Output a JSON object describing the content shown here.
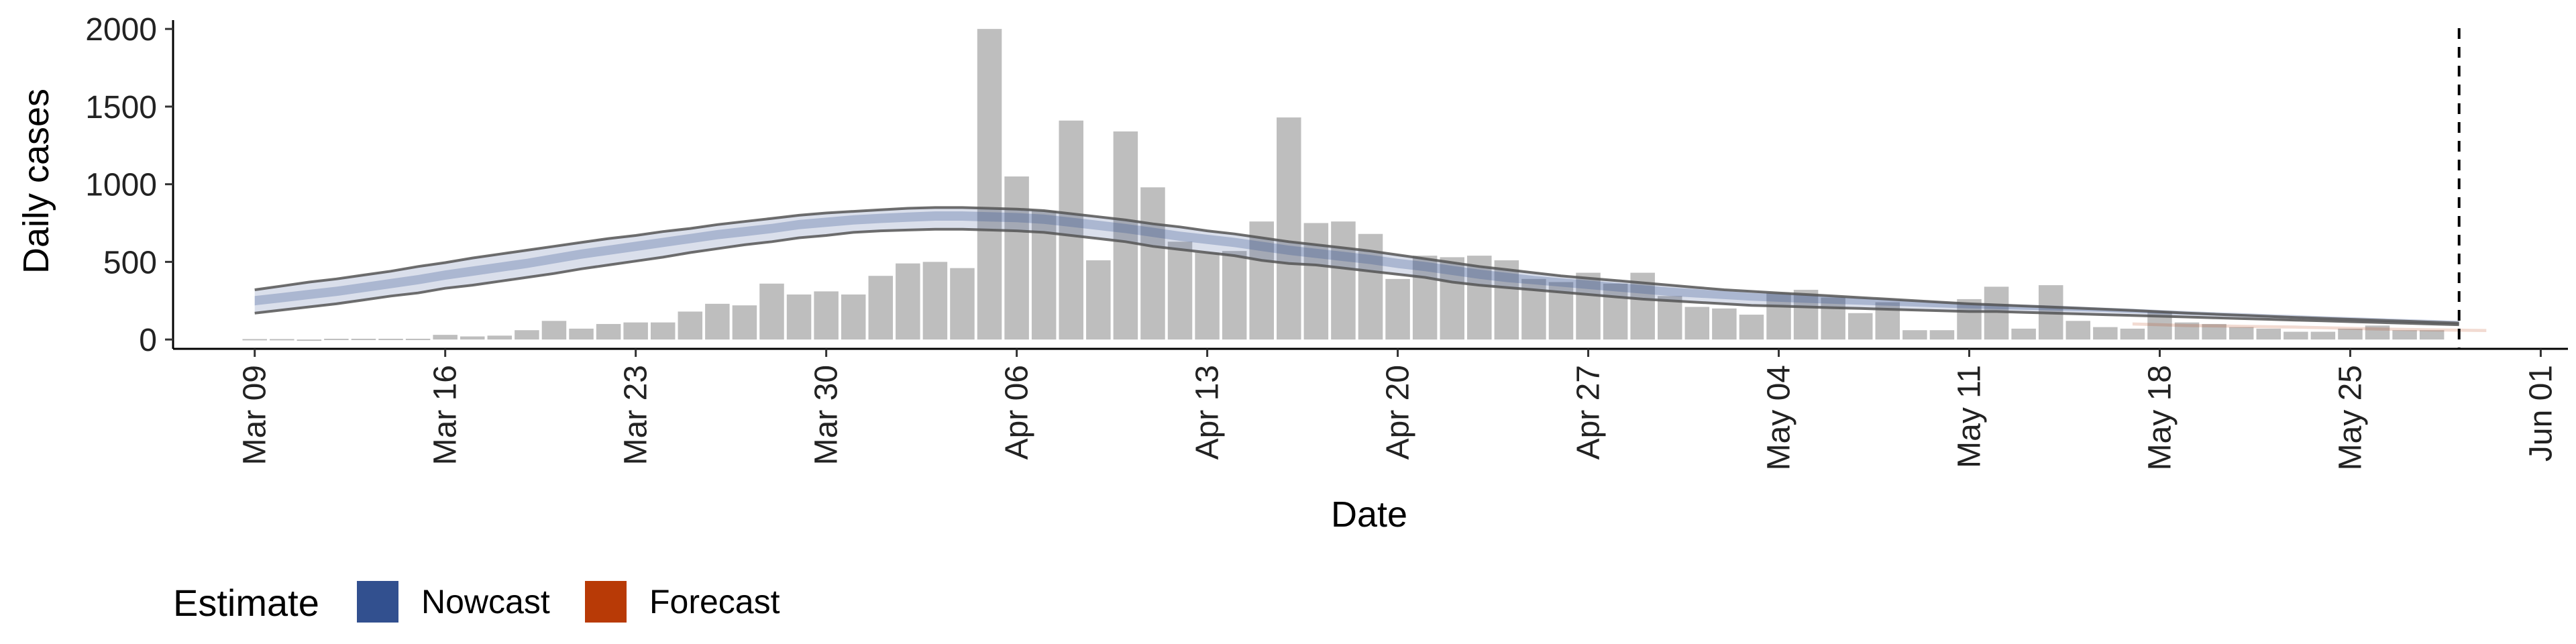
{
  "chart_data": {
    "type": "bar",
    "title": "",
    "xlabel": "Date",
    "ylabel": "Daily cases",
    "ylim": [
      -60,
      2100
    ],
    "xlim": [
      "2020-03-06",
      "2020-06-02"
    ],
    "y_ticks": [
      0,
      500,
      1000,
      1500,
      2000
    ],
    "x_ticks": [
      {
        "date": "2020-03-09",
        "label": "Mar 09"
      },
      {
        "date": "2020-03-16",
        "label": "Mar 16"
      },
      {
        "date": "2020-03-23",
        "label": "Mar 23"
      },
      {
        "date": "2020-03-30",
        "label": "Mar 30"
      },
      {
        "date": "2020-04-06",
        "label": "Apr 06"
      },
      {
        "date": "2020-04-13",
        "label": "Apr 13"
      },
      {
        "date": "2020-04-20",
        "label": "Apr 20"
      },
      {
        "date": "2020-04-27",
        "label": "Apr 27"
      },
      {
        "date": "2020-05-04",
        "label": "May 04"
      },
      {
        "date": "2020-05-11",
        "label": "May 11"
      },
      {
        "date": "2020-05-18",
        "label": "May 18"
      },
      {
        "date": "2020-05-25",
        "label": "May 25"
      },
      {
        "date": "2020-06-01",
        "label": "Jun 01"
      }
    ],
    "grid": false,
    "bars": {
      "start_date": "2020-03-09",
      "values": [
        3,
        3,
        0,
        5,
        5,
        5,
        5,
        30,
        20,
        25,
        60,
        120,
        70,
        100,
        110,
        110,
        180,
        230,
        220,
        360,
        290,
        310,
        290,
        410,
        490,
        500,
        460,
        2000,
        1050,
        830,
        1410,
        510,
        1340,
        980,
        630,
        560,
        570,
        760,
        1430,
        750,
        760,
        680,
        390,
        540,
        530,
        540,
        510,
        390,
        370,
        430,
        360,
        430,
        280,
        210,
        200,
        160,
        300,
        320,
        270,
        170,
        240,
        60,
        60,
        260,
        340,
        70,
        350,
        120,
        80,
        70,
        180,
        110,
        100,
        80,
        70,
        50,
        50,
        70,
        90,
        60,
        60
      ],
      "color": "#bebebe"
    },
    "dashed_line_date": "2020-05-29",
    "legend": {
      "title": "Estimate",
      "position": "bottom-left",
      "items": [
        {
          "label": "Nowcast",
          "color": "#32508f"
        },
        {
          "label": "Forecast",
          "color": "#b83a06"
        }
      ]
    },
    "series": [
      {
        "name": "Nowcast",
        "color": "#32508f",
        "start_date": "2020-03-09",
        "lower_90": [
          170,
          190,
          210,
          230,
          255,
          280,
          300,
          330,
          350,
          375,
          400,
          425,
          455,
          480,
          505,
          530,
          560,
          585,
          610,
          630,
          655,
          670,
          690,
          700,
          705,
          710,
          710,
          705,
          700,
          690,
          670,
          650,
          630,
          600,
          580,
          560,
          540,
          510,
          490,
          480,
          460,
          440,
          420,
          400,
          370,
          350,
          335,
          320,
          305,
          290,
          275,
          260,
          250,
          240,
          230,
          220,
          215,
          210,
          205,
          200,
          195,
          190,
          185,
          180,
          180,
          175,
          170,
          165,
          160,
          155,
          150,
          145,
          140,
          135,
          130,
          125,
          120,
          115,
          110,
          105,
          100,
          95
        ],
        "lower_50": [
          220,
          240,
          260,
          280,
          305,
          330,
          355,
          385,
          410,
          435,
          460,
          490,
          520,
          545,
          570,
          595,
          620,
          645,
          665,
          685,
          710,
          725,
          740,
          750,
          758,
          765,
          765,
          760,
          755,
          745,
          725,
          705,
          685,
          660,
          635,
          615,
          595,
          570,
          545,
          525,
          505,
          485,
          460,
          440,
          415,
          390,
          370,
          355,
          340,
          325,
          310,
          295,
          280,
          270,
          260,
          250,
          243,
          236,
          230,
          224,
          218,
          212,
          206,
          200,
          196,
          192,
          188,
          183,
          178,
          172,
          166,
          160,
          155,
          149,
          143,
          137,
          131,
          126,
          121,
          116,
          111,
          106
        ],
        "upper_50": [
          280,
          300,
          320,
          340,
          365,
          390,
          415,
          445,
          470,
          495,
          520,
          550,
          580,
          605,
          630,
          655,
          680,
          705,
          725,
          745,
          770,
          785,
          800,
          810,
          818,
          825,
          825,
          820,
          815,
          805,
          785,
          765,
          745,
          720,
          695,
          675,
          655,
          630,
          605,
          585,
          565,
          545,
          520,
          500,
          475,
          450,
          430,
          410,
          395,
          380,
          365,
          350,
          335,
          323,
          312,
          300,
          292,
          284,
          276,
          268,
          260,
          252,
          245,
          237,
          231,
          225,
          219,
          212,
          205,
          198,
          190,
          183,
          176,
          170,
          163,
          157,
          150,
          144,
          138,
          132,
          126,
          120
        ],
        "upper_90": [
          320,
          345,
          370,
          390,
          415,
          440,
          470,
          495,
          525,
          550,
          575,
          600,
          625,
          650,
          670,
          695,
          715,
          740,
          760,
          780,
          800,
          815,
          825,
          835,
          845,
          850,
          850,
          845,
          840,
          830,
          810,
          790,
          770,
          745,
          725,
          700,
          680,
          655,
          630,
          610,
          590,
          570,
          545,
          520,
          495,
          470,
          450,
          430,
          410,
          395,
          380,
          365,
          350,
          335,
          320,
          310,
          300,
          290,
          280,
          270,
          260,
          250,
          240,
          230,
          223,
          216,
          209,
          202,
          195,
          187,
          179,
          170,
          163,
          156,
          149,
          142,
          136,
          130,
          124,
          118,
          112,
          106
        ]
      },
      {
        "name": "Forecast",
        "color": "#b83a06",
        "start_date": "2020-05-17",
        "lower_90": [
          90,
          85,
          80,
          78,
          75,
          72,
          70,
          66,
          62,
          58,
          55,
          52,
          50,
          48
        ],
        "upper_90": [
          110,
          105,
          100,
          98,
          95,
          92,
          90,
          86,
          82,
          78,
          75,
          72,
          70,
          68
        ]
      }
    ]
  }
}
